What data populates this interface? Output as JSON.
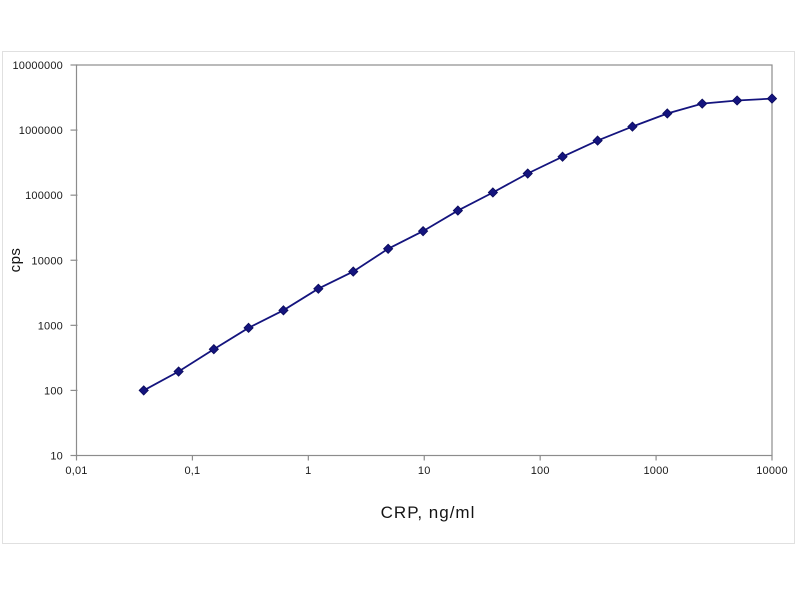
{
  "figure": {
    "background_color": "#ffffff",
    "frame_border_color": "#e0e0e0",
    "plot_border_color": "#8c8c8c",
    "tick_text_color": "#1a1a1a"
  },
  "chart_data": {
    "type": "line",
    "title": "",
    "xlabel": "CRP, ng/ml",
    "ylabel": "cps",
    "x_scale": "log",
    "y_scale": "log",
    "xlim": [
      0.01,
      10000
    ],
    "ylim": [
      10,
      10000000
    ],
    "x_tick_values": [
      0.01,
      0.1,
      1,
      10,
      100,
      1000,
      10000
    ],
    "x_tick_labels": [
      "0,01",
      "0,1",
      "1",
      "10",
      "100",
      "1000",
      "10000"
    ],
    "y_tick_values": [
      10,
      100,
      1000,
      10000,
      100000,
      1000000,
      10000000
    ],
    "y_tick_labels": [
      "10",
      "100",
      "1000",
      "10000",
      "100000",
      "1000000",
      "10000000"
    ],
    "grid": false,
    "legend": false,
    "series": [
      {
        "color": "#14147e",
        "marker": "diamond",
        "x": [
          0.038,
          0.076,
          0.153,
          0.305,
          0.61,
          1.22,
          2.44,
          4.88,
          9.77,
          19.5,
          39.1,
          78.1,
          156,
          313,
          625,
          1250,
          2500,
          5000,
          10000
        ],
        "y": [
          100,
          195,
          430,
          915,
          1700,
          3650,
          6700,
          15000,
          28000,
          58000,
          110000,
          215000,
          390000,
          690000,
          1130000,
          1800000,
          2550000,
          2850000,
          3050000
        ]
      }
    ]
  }
}
